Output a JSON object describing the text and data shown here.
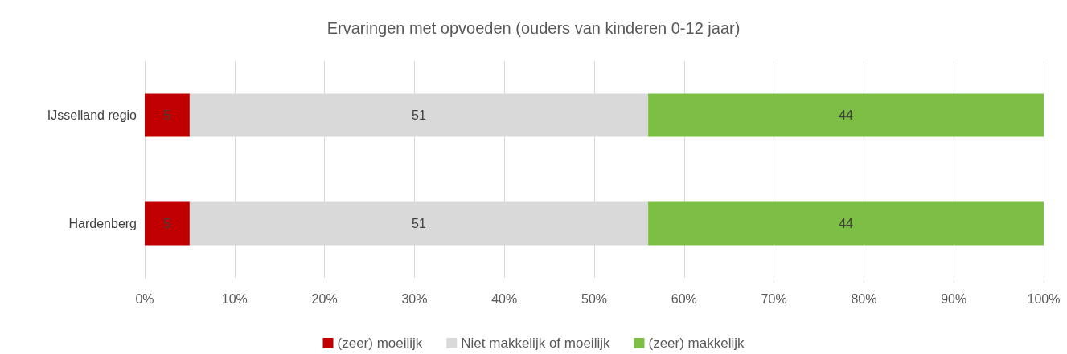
{
  "chart_data": {
    "type": "bar",
    "title": "Ervaringen met opvoeden (ouders van kinderen 0-12 jaar)",
    "orientation": "horizontal",
    "stacked": true,
    "categories": [
      "IJsselland regio",
      "Hardenberg"
    ],
    "series": [
      {
        "name": "(zeer) moeilijk",
        "color": "#c00000",
        "values": [
          5,
          5
        ]
      },
      {
        "name": "Niet makkelijk of moeilijk",
        "color": "#d9d9d9",
        "values": [
          51,
          51
        ]
      },
      {
        "name": "(zeer) makkelijk",
        "color": "#7cbf44",
        "values": [
          44,
          44
        ]
      }
    ],
    "xlim": [
      0,
      100
    ],
    "xticks": [
      {
        "value": 0,
        "label": "0%"
      },
      {
        "value": 10,
        "label": "10%"
      },
      {
        "value": 20,
        "label": "20%"
      },
      {
        "value": 30,
        "label": "30%"
      },
      {
        "value": 40,
        "label": "40%"
      },
      {
        "value": 50,
        "label": "50%"
      },
      {
        "value": 60,
        "label": "60%"
      },
      {
        "value": 70,
        "label": "70%"
      },
      {
        "value": 80,
        "label": "80%"
      },
      {
        "value": 90,
        "label": "90%"
      },
      {
        "value": 100,
        "label": "100%"
      }
    ],
    "data_labels": true,
    "grid": "x",
    "legend": "bottom"
  }
}
